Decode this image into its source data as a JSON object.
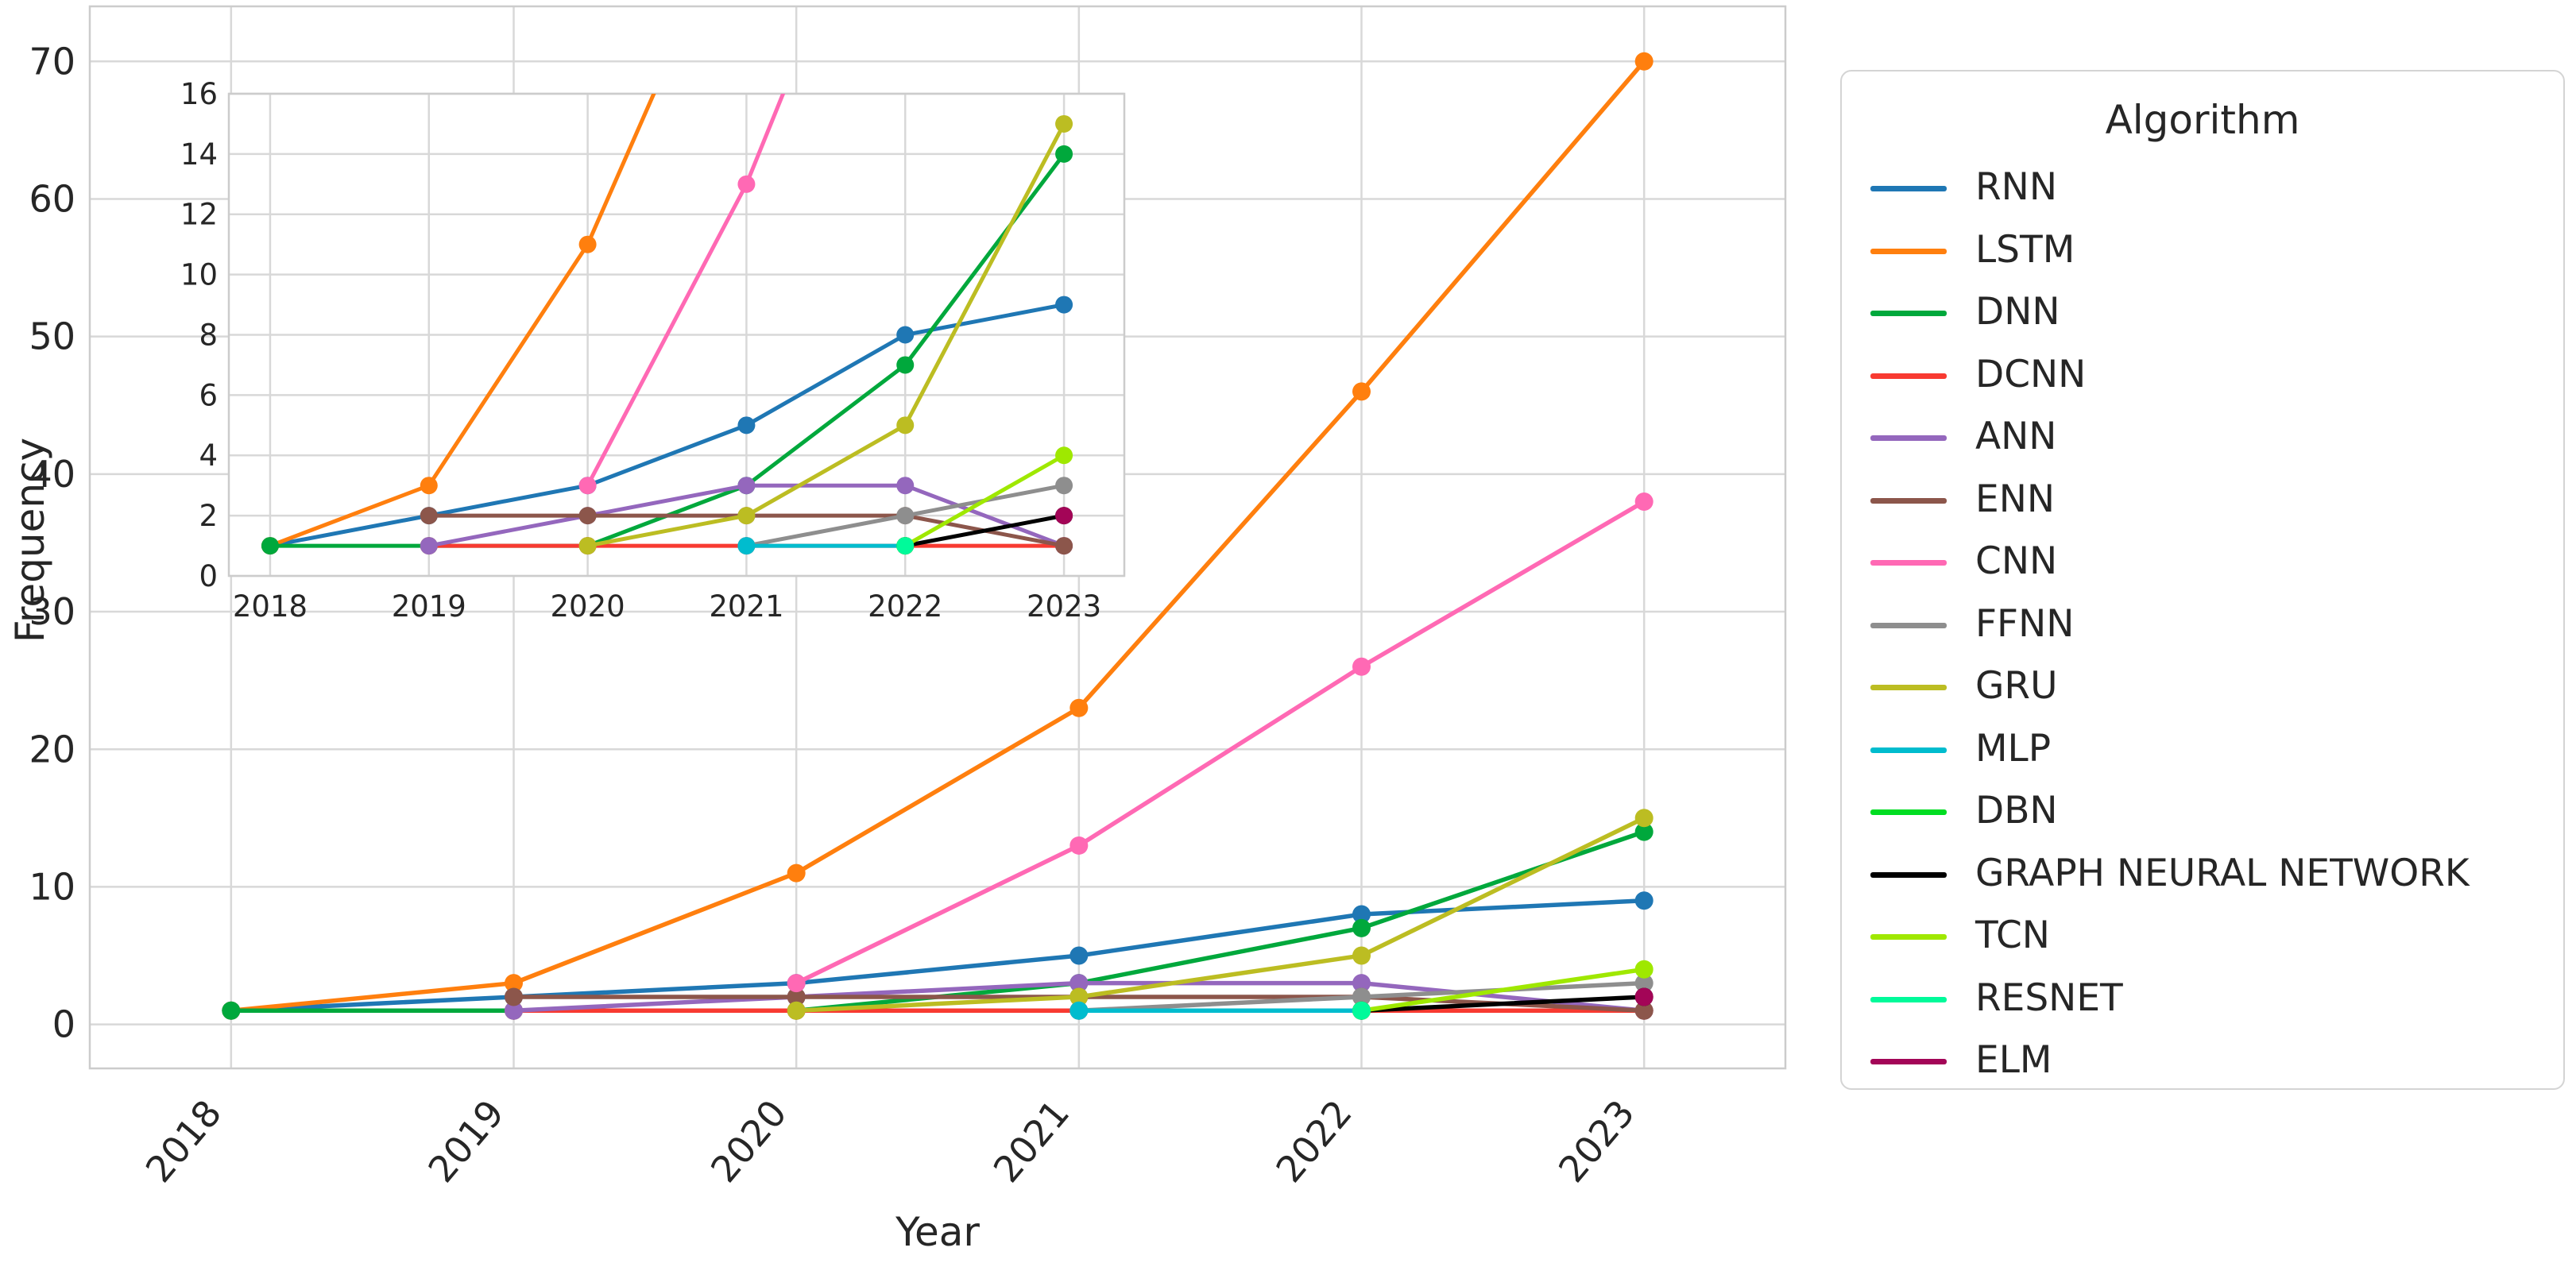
{
  "figure": {
    "background": "#ffffff",
    "text_color": "#262626",
    "grid_color": "#d8d8d8",
    "spine_color": "#cccccc"
  },
  "labels": {
    "xlabel": "Year",
    "ylabel": "Frequency",
    "legend_title": "Algorithm"
  },
  "chart_data": {
    "type": "line",
    "title": "",
    "xlabel": "Year",
    "ylabel": "Frequency",
    "legend_title": "Algorithm",
    "legend_position": "right",
    "grid": true,
    "x_ticks": [
      2018,
      2019,
      2020,
      2021,
      2022,
      2023
    ],
    "main_axes": {
      "xlim": [
        2017.5,
        2023.5
      ],
      "ylim": [
        -3.2,
        74.0
      ],
      "y_ticks": [
        0,
        10,
        20,
        30,
        40,
        50,
        60,
        70
      ],
      "x_tick_rotation": 50
    },
    "inset_axes": {
      "xlim": [
        2017.74,
        2023.38
      ],
      "ylim": [
        0,
        16
      ],
      "y_ticks": [
        0,
        2,
        4,
        6,
        8,
        10,
        12,
        14,
        16
      ],
      "x_tick_rotation": 0
    },
    "series": [
      {
        "name": "RNN",
        "color": "#1f77b4",
        "x": [
          2018,
          2019,
          2020,
          2021,
          2022,
          2023
        ],
        "y": [
          1,
          2,
          3,
          5,
          8,
          9
        ]
      },
      {
        "name": "LSTM",
        "color": "#ff7f0e",
        "x": [
          2018,
          2019,
          2020,
          2021,
          2022,
          2023
        ],
        "y": [
          1,
          3,
          11,
          23,
          46,
          70
        ]
      },
      {
        "name": "DNN",
        "color": "#00a83c",
        "x": [
          2018,
          2019,
          2020,
          2021,
          2022,
          2023
        ],
        "y": [
          1,
          1,
          1,
          3,
          7,
          14
        ]
      },
      {
        "name": "DCNN",
        "color": "#f83a31",
        "x": [
          2019,
          2020,
          2021,
          2022,
          2023
        ],
        "y": [
          1,
          1,
          1,
          1,
          1
        ]
      },
      {
        "name": "ANN",
        "color": "#9467bd",
        "x": [
          2019,
          2020,
          2021,
          2022,
          2023
        ],
        "y": [
          1,
          2,
          3,
          3,
          1
        ]
      },
      {
        "name": "ENN",
        "color": "#8c564b",
        "x": [
          2019,
          2020,
          2021,
          2022,
          2023
        ],
        "y": [
          2,
          2,
          2,
          2,
          1
        ]
      },
      {
        "name": "CNN",
        "color": "#ff69b4",
        "x": [
          2020,
          2021,
          2022,
          2023
        ],
        "y": [
          3,
          13,
          26,
          38
        ]
      },
      {
        "name": "FFNN",
        "color": "#8e8e8e",
        "x": [
          2021,
          2022,
          2023
        ],
        "y": [
          1,
          2,
          3
        ]
      },
      {
        "name": "GRU",
        "color": "#bcbd22",
        "x": [
          2020,
          2021,
          2022,
          2023
        ],
        "y": [
          1,
          2,
          5,
          15
        ]
      },
      {
        "name": "MLP",
        "color": "#00bcce",
        "x": [
          2021,
          2022
        ],
        "y": [
          1,
          1
        ]
      },
      {
        "name": "DBN",
        "color": "#00dd22",
        "x": [
          2022
        ],
        "y": [
          1
        ]
      },
      {
        "name": "GRAPH NEURAL NETWORK",
        "color": "#000000",
        "x": [
          2022,
          2023
        ],
        "y": [
          1,
          2
        ]
      },
      {
        "name": "TCN",
        "color": "#9fe800",
        "x": [
          2022,
          2023
        ],
        "y": [
          1,
          4
        ]
      },
      {
        "name": "RESNET",
        "color": "#00fa9a",
        "x": [
          2022
        ],
        "y": [
          1
        ]
      },
      {
        "name": "ELM",
        "color": "#a30557",
        "x": [
          2023
        ],
        "y": [
          2
        ]
      }
    ]
  }
}
